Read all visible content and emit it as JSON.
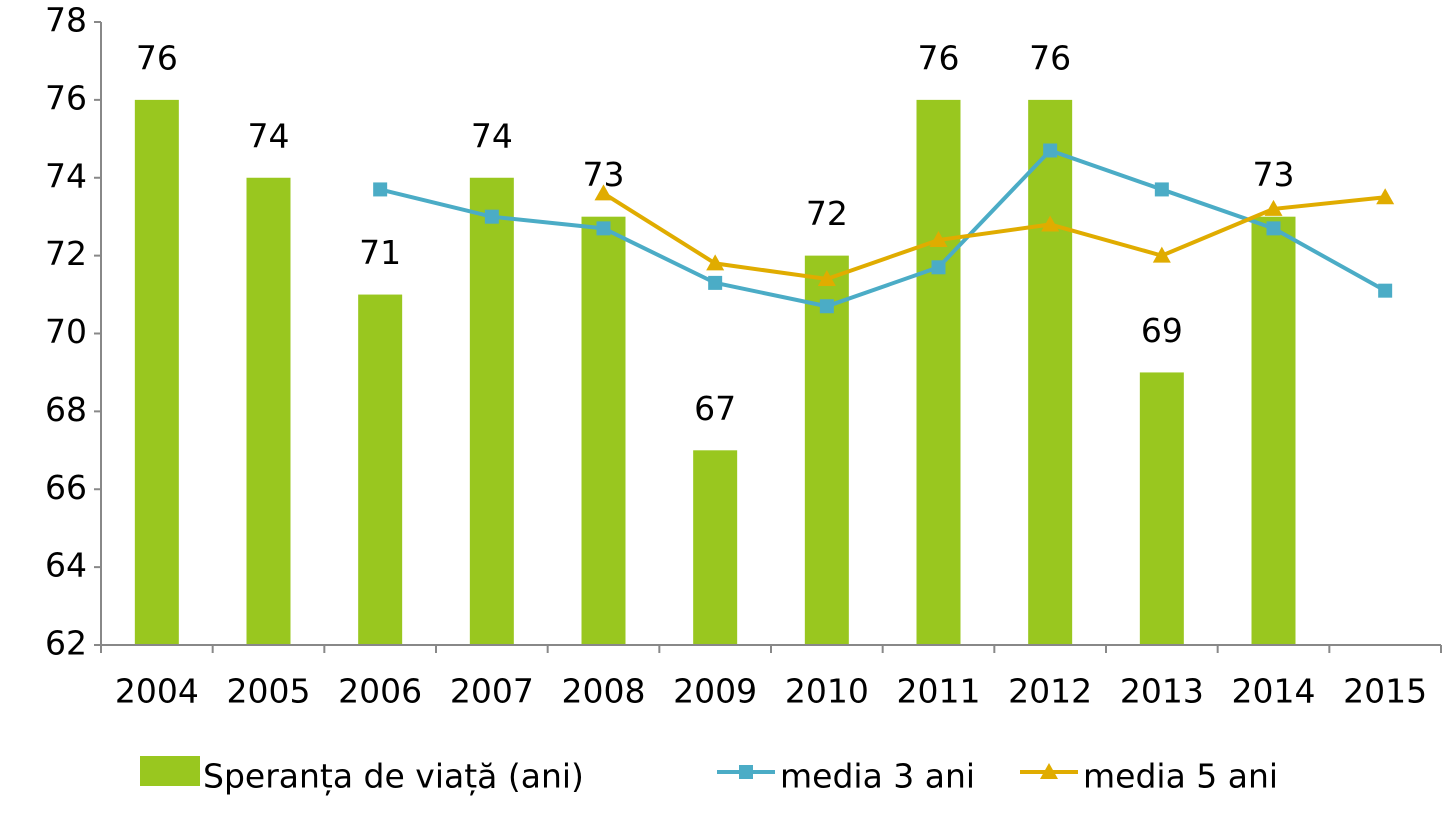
{
  "chart_data": {
    "type": "bar",
    "categories": [
      "2004",
      "2005",
      "2006",
      "2007",
      "2008",
      "2009",
      "2010",
      "2011",
      "2012",
      "2013",
      "2014",
      "2015"
    ],
    "series": [
      {
        "name": "Speranța de viață (ani)",
        "type": "bar",
        "color": "#99c71f",
        "values": [
          76,
          74,
          71,
          74,
          73,
          67,
          72,
          76,
          76,
          69,
          73,
          null
        ]
      },
      {
        "name": "media 3 ani",
        "type": "line",
        "marker": "square",
        "color": "#4bacc6",
        "values": [
          null,
          null,
          73.7,
          73.0,
          72.7,
          71.3,
          70.7,
          71.7,
          74.7,
          73.7,
          72.7,
          71.1
        ]
      },
      {
        "name": "media 5 ani",
        "type": "line",
        "marker": "triangle",
        "color": "#e0ac00",
        "values": [
          null,
          null,
          null,
          null,
          73.6,
          71.8,
          71.4,
          72.4,
          72.8,
          72.0,
          73.2,
          73.5
        ]
      }
    ],
    "ylim": [
      62,
      78
    ],
    "yticks": [
      62,
      64,
      66,
      68,
      70,
      72,
      74,
      76,
      78
    ],
    "grid": false,
    "legend": "bottom"
  }
}
